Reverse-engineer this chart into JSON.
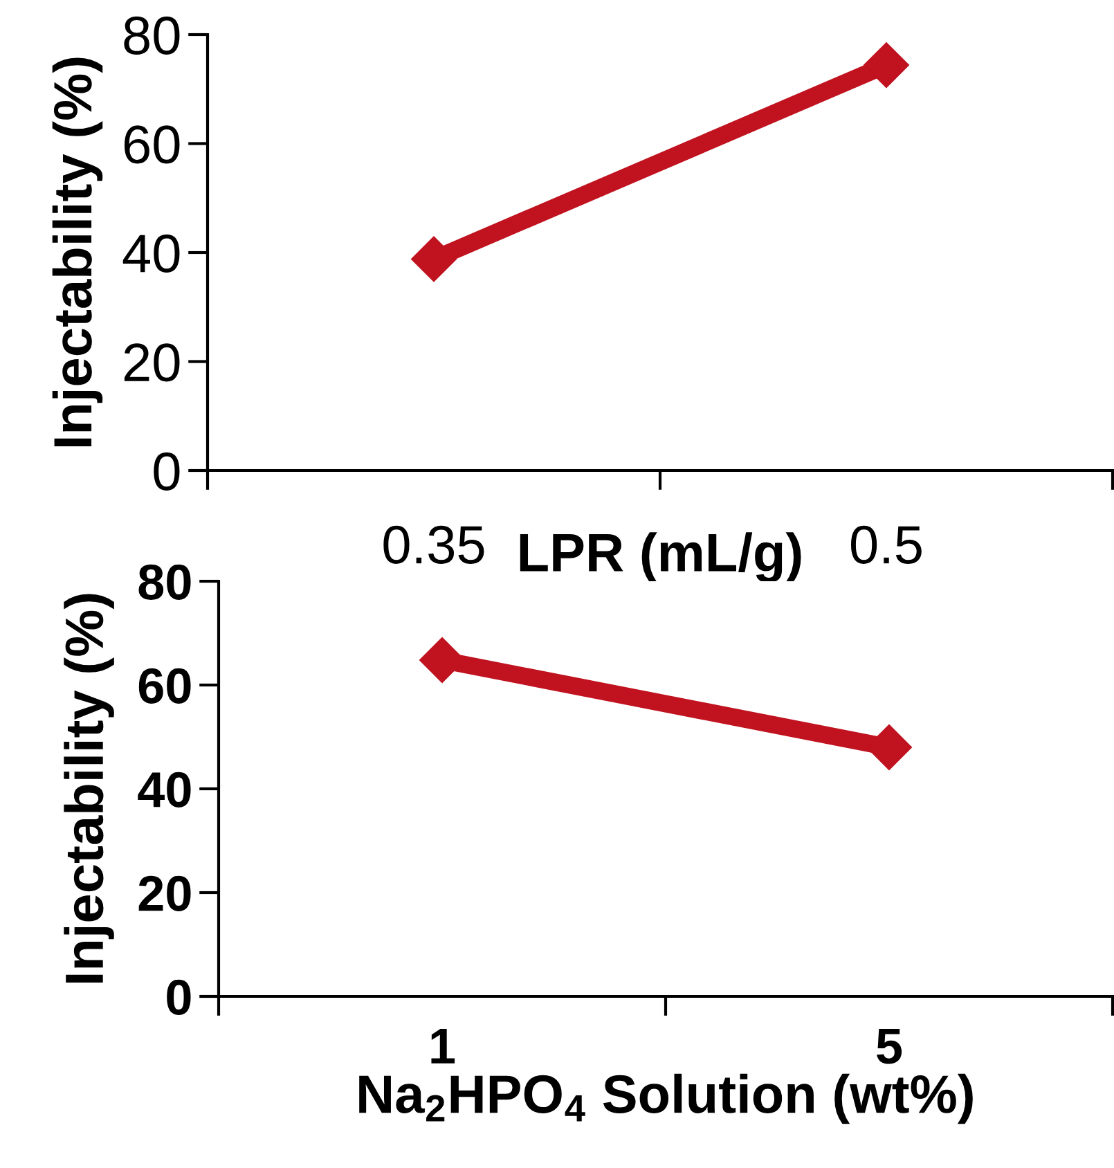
{
  "chart_data": [
    {
      "type": "line",
      "categories": [
        "0.35",
        "0.5"
      ],
      "xlabel": "LPR (mL/g)",
      "ylabel": "Injectability (%)",
      "ylim": [
        0,
        80
      ],
      "yticks": [
        0,
        20,
        40,
        60,
        80
      ],
      "marker": "diamond",
      "line_style": "solid",
      "grid": false,
      "legend": false,
      "series": [
        {
          "color": "#c0121f",
          "values": [
            38.8,
            74.4
          ]
        }
      ]
    },
    {
      "type": "line",
      "categories": [
        "1",
        "5"
      ],
      "xlabel": "Na$_{2}$HPO$_{4}$ Solution (wt%)",
      "ylabel": "Injectability (%)",
      "ylim": [
        0,
        80
      ],
      "yticks": [
        0,
        20,
        40,
        60,
        80
      ],
      "marker": "diamond",
      "line_style": "solid",
      "grid": false,
      "legend": false,
      "series": [
        {
          "color": "#c0121f",
          "values": [
            64.8,
            48.0
          ]
        }
      ]
    }
  ]
}
